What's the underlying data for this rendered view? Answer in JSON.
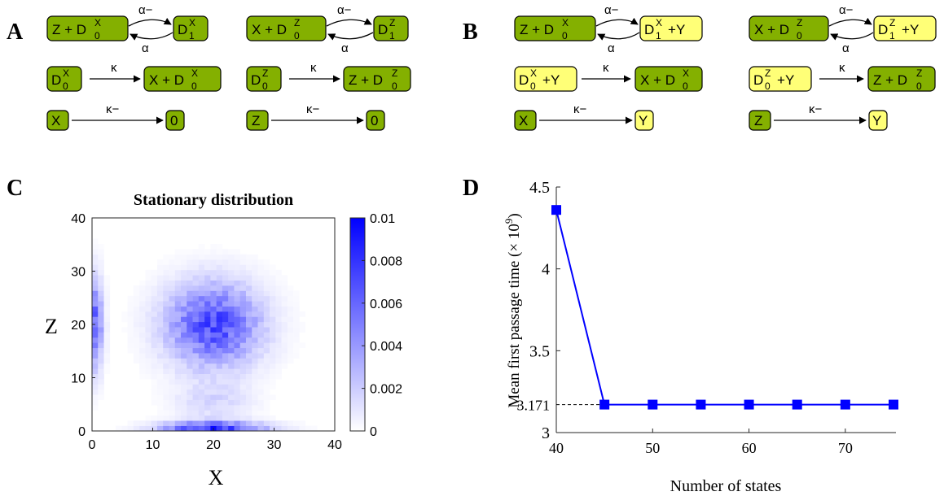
{
  "panels": {
    "A": {
      "letter": "A",
      "species": {
        "Z": "Z",
        "X": "X",
        "D": "D",
        "zero": "0",
        "sub0": "0",
        "sub1": "1",
        "supX": "X",
        "supZ": "Z",
        "plus": "+"
      },
      "rates": {
        "alpha_minus": "α−",
        "alpha": "α",
        "kappa": "κ",
        "kappa_minus": "κ−"
      }
    },
    "B": {
      "letter": "B",
      "species": {
        "Z": "Z",
        "X": "X",
        "Y": "Y",
        "D": "D",
        "sub0": "0",
        "sub1": "1",
        "supX": "X",
        "supZ": "Z",
        "plus": "+"
      },
      "rates": {
        "alpha_minus": "α−",
        "alpha": "α",
        "kappa": "κ",
        "kappa_minus": "κ−"
      }
    },
    "C": {
      "letter": "C",
      "title": "Stationary distribution",
      "xlabel": "X",
      "ylabel": "Z",
      "xticks": [
        "0",
        "10",
        "20",
        "30",
        "40"
      ],
      "yticks": [
        "0",
        "10",
        "20",
        "30",
        "40"
      ],
      "colorbar_ticks": [
        "0",
        "0.002",
        "0.004",
        "0.006",
        "0.008",
        "0.01"
      ]
    },
    "D": {
      "letter": "D",
      "xlabel": "Number of states",
      "ylabel": "Mean first passage time (× 10",
      "ylabel_exp": "9",
      "ylabel_close": ")",
      "xticks": [
        "40",
        "50",
        "60",
        "70"
      ],
      "yticks": [
        "3",
        "3.5",
        "4",
        "4.5"
      ],
      "ref_label": "3.171"
    }
  },
  "colors": {
    "green_box": "#84b000",
    "yellow_box": "#ffff77",
    "heat_max": "#0000ff",
    "line": "#0000ff"
  },
  "chart_data": [
    {
      "type": "heatmap",
      "title": "Stationary distribution",
      "xlabel": "X",
      "ylabel": "Z",
      "xlim": [
        0,
        40
      ],
      "ylim": [
        0,
        40
      ],
      "clim": [
        0,
        0.01
      ],
      "colormap": "white-to-blue",
      "modes": [
        {
          "x": 20,
          "y": 20,
          "value": 0.007
        },
        {
          "x": 20,
          "y": 0,
          "value": 0.008
        },
        {
          "x": 0,
          "y": 20,
          "value": 0.006
        }
      ]
    },
    {
      "type": "line",
      "xlabel": "Number of states",
      "ylabel": "Mean first passage time (× 10^9)",
      "xlim": [
        40,
        75
      ],
      "ylim": [
        3,
        4.5
      ],
      "x": [
        40,
        45,
        50,
        55,
        60,
        65,
        70,
        75
      ],
      "values": [
        4.36,
        3.171,
        3.171,
        3.171,
        3.171,
        3.171,
        3.171,
        3.171
      ],
      "reference_line": 3.171,
      "marker": "square"
    }
  ]
}
